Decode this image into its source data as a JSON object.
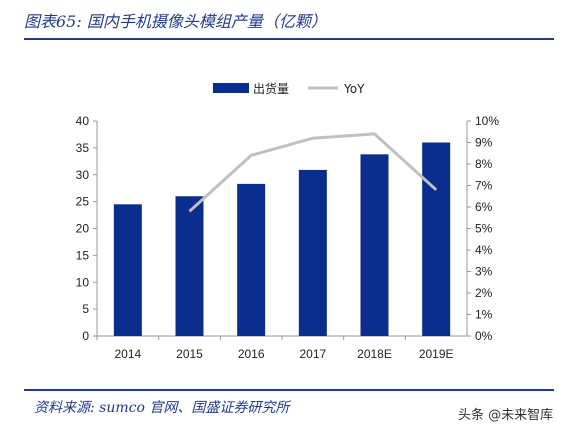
{
  "header": {
    "title": "图表65: 国内手机摄像头模组产量（亿颗）"
  },
  "footer": {
    "source": "资料来源: sumco 官网、国盛证券研究所",
    "watermark": "头条 @未来智库"
  },
  "chart_data": {
    "type": "bar",
    "title": "",
    "categories": [
      "2014",
      "2015",
      "2016",
      "2017",
      "2018E",
      "2019E"
    ],
    "series": [
      {
        "name": "出货量",
        "type": "bar",
        "axis": "left",
        "color": "#0b2d8e",
        "values": [
          24.5,
          26,
          28.3,
          30.9,
          33.8,
          36
        ]
      },
      {
        "name": "YoY",
        "type": "line",
        "axis": "right",
        "color": "#c0c0c0",
        "values": [
          null,
          5.8,
          8.4,
          9.2,
          9.4,
          6.8
        ]
      }
    ],
    "ylim": [
      0,
      40
    ],
    "y_ticks": [
      "0",
      "5",
      "10",
      "15",
      "20",
      "25",
      "30",
      "35",
      "40"
    ],
    "y2lim": [
      0,
      10
    ],
    "y2_ticks": [
      "0%",
      "1%",
      "2%",
      "3%",
      "4%",
      "5%",
      "6%",
      "7%",
      "8%",
      "9%",
      "10%"
    ],
    "legend": [
      "出货量",
      "YoY"
    ],
    "legend_position": "top",
    "grid": false
  }
}
